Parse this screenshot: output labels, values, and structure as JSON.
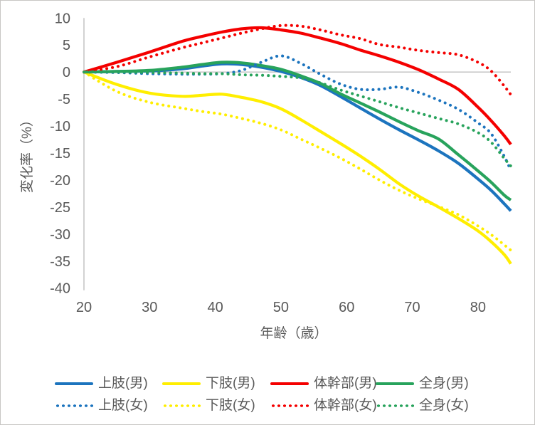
{
  "chart_data": {
    "type": "line",
    "title": "",
    "xlabel": "年齢（歳）",
    "ylabel": "変化率（%）",
    "xlim": [
      20,
      85
    ],
    "ylim": [
      -40,
      10
    ],
    "x_ticks": [
      20,
      30,
      40,
      50,
      60,
      70,
      80
    ],
    "y_ticks": [
      10,
      5,
      0,
      -5,
      -10,
      -15,
      -20,
      -25,
      -30,
      -35,
      -40
    ],
    "grid": "zero-line-only",
    "legend_position": "bottom",
    "axis_color": "#bfbfbf",
    "tick_label_color": "#595959",
    "x": [
      20,
      25,
      30,
      35,
      38,
      41,
      44,
      47,
      50,
      53,
      56,
      59,
      62,
      65,
      68,
      71,
      74,
      77,
      80,
      82,
      84,
      85
    ],
    "series": [
      {
        "id": "upper-limb-male",
        "name": "上肢(男)",
        "color": "#1c74be",
        "style": "solid",
        "values": [
          0,
          0.1,
          0.2,
          0.6,
          1.1,
          1.5,
          1.4,
          0.9,
          0.1,
          -1.0,
          -2.5,
          -4.5,
          -6.6,
          -8.7,
          -10.7,
          -12.6,
          -14.6,
          -16.9,
          -19.8,
          -21.9,
          -24.4,
          -25.7
        ]
      },
      {
        "id": "lower-limb-male",
        "name": "下肢(男)",
        "color": "#ffee00",
        "style": "solid",
        "values": [
          0,
          -2.3,
          -3.9,
          -4.5,
          -4.3,
          -4.1,
          -4.7,
          -5.5,
          -6.8,
          -8.8,
          -11.0,
          -13.2,
          -15.5,
          -18.0,
          -20.7,
          -23.0,
          -25.0,
          -27.1,
          -29.4,
          -31.4,
          -33.8,
          -35.5
        ]
      },
      {
        "id": "trunk-male",
        "name": "体幹部(男)",
        "color": "#f40000",
        "style": "solid",
        "values": [
          0,
          1.8,
          3.7,
          5.7,
          6.6,
          7.4,
          8.0,
          8.2,
          7.8,
          7.2,
          6.3,
          5.3,
          4.1,
          3.0,
          1.8,
          0.4,
          -1.3,
          -3.2,
          -6.5,
          -9.0,
          -11.8,
          -13.4
        ]
      },
      {
        "id": "whole-body-male",
        "name": "全身(男)",
        "color": "#28a35c",
        "style": "solid",
        "values": [
          0,
          0.1,
          0.3,
          0.9,
          1.4,
          1.8,
          1.7,
          1.2,
          0.5,
          -0.7,
          -2.1,
          -4.0,
          -5.7,
          -7.4,
          -9.2,
          -10.9,
          -12.4,
          -15.3,
          -18.3,
          -20.4,
          -22.8,
          -23.7
        ]
      },
      {
        "id": "upper-limb-female",
        "name": "上肢(女)",
        "color": "#1c74be",
        "style": "dotted",
        "values": [
          0,
          -0.1,
          -0.3,
          -0.4,
          -0.4,
          -0.3,
          0.3,
          1.8,
          3.0,
          1.6,
          -0.4,
          -2.2,
          -3.2,
          -3.2,
          -2.8,
          -3.8,
          -5.2,
          -6.9,
          -9.4,
          -11.4,
          -15.6,
          -18.2
        ]
      },
      {
        "id": "lower-limb-female",
        "name": "下肢(女)",
        "color": "#ffee00",
        "style": "dotted",
        "values": [
          0,
          -3.6,
          -5.6,
          -6.7,
          -7.3,
          -7.8,
          -8.6,
          -9.5,
          -10.7,
          -12.4,
          -14.1,
          -15.9,
          -17.9,
          -20.0,
          -21.9,
          -23.5,
          -24.9,
          -26.4,
          -28.5,
          -30.1,
          -32.0,
          -33.0
        ]
      },
      {
        "id": "trunk-female",
        "name": "体幹部(女)",
        "color": "#f40000",
        "style": "dotted",
        "values": [
          0,
          1.0,
          2.8,
          4.5,
          5.4,
          6.3,
          7.2,
          8.0,
          8.6,
          8.5,
          7.8,
          6.9,
          6.2,
          5.1,
          4.6,
          4.0,
          3.6,
          3.2,
          1.8,
          0.2,
          -2.6,
          -4.2
        ]
      },
      {
        "id": "whole-body-female",
        "name": "全身(女)",
        "color": "#28a35c",
        "style": "dotted",
        "values": [
          0,
          0.0,
          -0.1,
          -0.2,
          -0.3,
          -0.3,
          -0.5,
          -0.6,
          -0.8,
          -1.1,
          -2.0,
          -3.3,
          -4.4,
          -5.5,
          -6.6,
          -7.6,
          -8.6,
          -9.6,
          -11.2,
          -13.0,
          -16.0,
          -17.4
        ]
      }
    ]
  },
  "legend": {
    "rows": [
      [
        0,
        1,
        2,
        3
      ],
      [
        4,
        5,
        6,
        7
      ]
    ]
  }
}
